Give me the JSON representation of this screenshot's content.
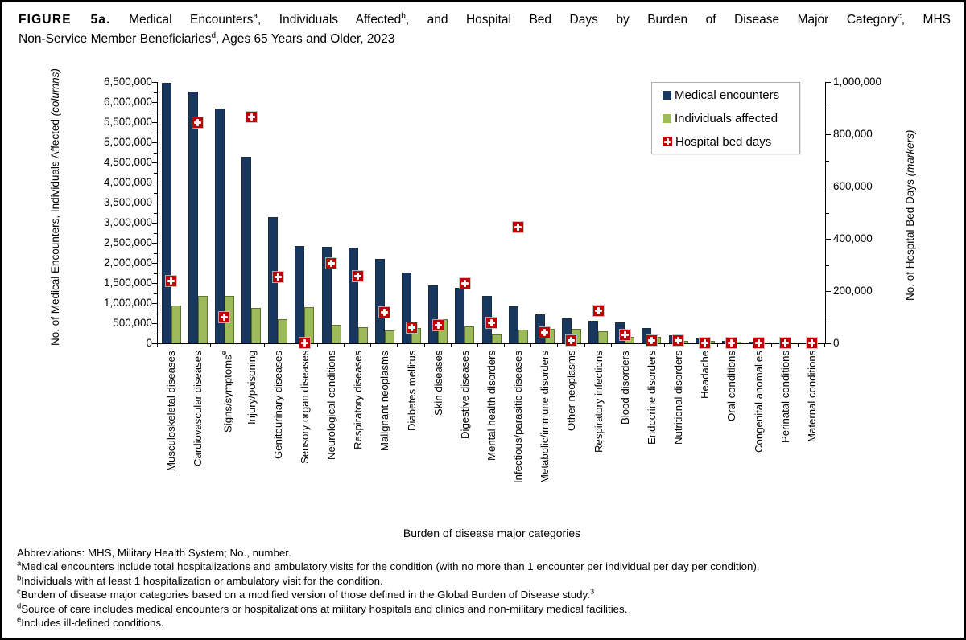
{
  "title": {
    "line1_segments": [
      {
        "text": "FIGURE 5a.",
        "bold": true
      },
      {
        "text": " Medical Encounters"
      },
      {
        "text": "a",
        "sup": true
      },
      {
        "text": ", Individuals Affected"
      },
      {
        "text": "b",
        "sup": true
      },
      {
        "text": ", and Hospital Bed Days by Burden of Disease Major Category"
      },
      {
        "text": "c",
        "sup": true
      },
      {
        "text": ", MHS"
      }
    ],
    "line2_segments": [
      {
        "text": "Non-Service Member Beneficiaries"
      },
      {
        "text": "d",
        "sup": true
      },
      {
        "text": ", Ages 65 Years and Older, 2023"
      }
    ]
  },
  "legend": {
    "items": [
      {
        "label": "Medical encounters",
        "swatch": "square",
        "color": "#17375E"
      },
      {
        "label": "Individuals affected",
        "swatch": "square",
        "color": "#9BBB59"
      },
      {
        "label": "Hospital bed days",
        "swatch": "cross",
        "color": "#C00000"
      }
    ]
  },
  "chart_data": {
    "type": "bar",
    "subtype": "dual-axis combo: paired columns with point markers",
    "grid": false,
    "legend_position": "top-right inside plot",
    "categories": [
      "Musculoskeletal diseases",
      "Cardiovascular diseases",
      "Signs/symptoms",
      "Injury/poisoning",
      "Genitourinary diseases",
      "Sensory organ diseases",
      "Neurological conditions",
      "Respiratory diseases",
      "Malignant neoplasms",
      "Diabetes mellitus",
      "Skin diseases",
      "Digestive diseases",
      "Mental health disorders",
      "Infectious/parasitic diseases",
      "Metabolic/immune disorders",
      "Other neoplasms",
      "Respiratory infections",
      "Blood disorders",
      "Endocrine disorders",
      "Nutritional disorders",
      "Headache",
      "Oral conditions",
      "Congenital anomalies",
      "Perinatal conditions",
      "Maternal conditions"
    ],
    "category_footnotes": {
      "2": "e"
    },
    "series": [
      {
        "name": "Medical encounters",
        "render": "column",
        "axis": "left",
        "color": "#17375E",
        "values": [
          6480000,
          6260000,
          5830000,
          4630000,
          3140000,
          2420000,
          2390000,
          2370000,
          2090000,
          1760000,
          1440000,
          1380000,
          1170000,
          915000,
          725000,
          615000,
          565000,
          515000,
          385000,
          195000,
          115000,
          55000,
          35000,
          10000,
          5000
        ]
      },
      {
        "name": "Individuals affected",
        "render": "column",
        "axis": "left",
        "color": "#9BBB59",
        "values": [
          945000,
          1180000,
          1180000,
          885000,
          590000,
          900000,
          450000,
          405000,
          325000,
          375000,
          590000,
          425000,
          215000,
          335000,
          365000,
          350000,
          290000,
          165000,
          165000,
          60000,
          50000,
          30000,
          15000,
          4000,
          2000
        ]
      },
      {
        "name": "Hospital bed days",
        "render": "marker",
        "axis": "right",
        "color": "#C00000",
        "values": [
          240000,
          845000,
          100000,
          865000,
          255000,
          2000,
          305000,
          258000,
          118000,
          60000,
          70000,
          228000,
          80000,
          445000,
          42000,
          12000,
          125000,
          33000,
          12000,
          10000,
          2000,
          2000,
          2000,
          1000,
          500
        ]
      }
    ],
    "left_axis": {
      "title": "No. of Medical Encounters, Individuals Affected (columns)",
      "title_plain": "No. of Medical Encounters, Individuals Affected ",
      "title_italic": "(columns)",
      "min": 0,
      "max": 6500000,
      "major_tick_step": 500000,
      "minor_tick_step": 250000,
      "tick_labels": [
        "6,500,000",
        "6,000,000",
        "5,500,000",
        "5,000,000",
        "4,500,000",
        "4,000,000",
        "3,500,000",
        "3,000,000",
        "2,500,000",
        "2,000,000",
        "1,500,000",
        "1,000,000",
        "500,000",
        "0"
      ]
    },
    "right_axis": {
      "title": "No. of Hospital Bed Days (markers)",
      "title_plain": "No. of Hospital Bed Days ",
      "title_italic": "(markers)",
      "min": 0,
      "max": 1000000,
      "major_tick_step": 200000,
      "minor_tick_step": 100000,
      "tick_labels": [
        "1,000,000",
        "800,000",
        "600,000",
        "400,000",
        "200,000",
        "0"
      ]
    },
    "xlabel": "Burden of disease major categories"
  },
  "footnotes": {
    "lines": [
      {
        "segments": [
          {
            "text": "Abbreviations: MHS, Military Health System; No., number."
          }
        ]
      },
      {
        "segments": [
          {
            "text": "a",
            "sup": true
          },
          {
            "text": "Medical encounters include total hospitalizations and ambulatory visits for the condition (with no more than 1 encounter per individual per day per condition)."
          }
        ]
      },
      {
        "segments": [
          {
            "text": "b",
            "sup": true
          },
          {
            "text": "Individuals with at least 1 hospitalization or ambulatory visit for the condition."
          }
        ]
      },
      {
        "segments": [
          {
            "text": "c",
            "sup": true
          },
          {
            "text": "Burden of disease major categories based on a modified version of those defined in the Global Burden of Disease study."
          },
          {
            "text": "3",
            "sup": true
          }
        ]
      },
      {
        "segments": [
          {
            "text": "d",
            "sup": true
          },
          {
            "text": "Source of care includes medical encounters or hospitalizations at military hospitals and clinics and non-military medical facilities."
          }
        ]
      },
      {
        "segments": [
          {
            "text": "e",
            "sup": true
          },
          {
            "text": "Includes ill-defined conditions."
          }
        ]
      }
    ]
  },
  "colors": {
    "column_primary": "#17375E",
    "column_secondary": "#9BBB59",
    "marker": "#C00000",
    "axis": "#000000",
    "legend_border": "#ABABAB"
  }
}
